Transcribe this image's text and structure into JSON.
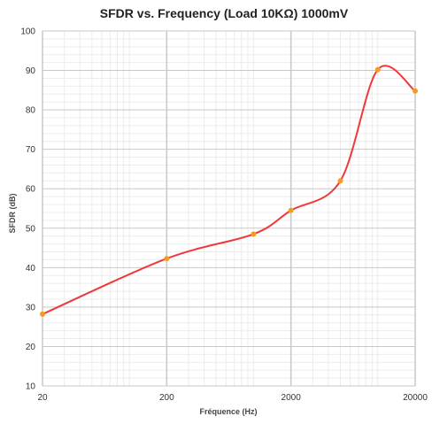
{
  "chart_data": {
    "type": "line",
    "title": "SFDR vs. Frequency (Load 10KΩ) 1000mV",
    "xlabel": "Fréquence (Hz)",
    "ylabel": "SFDR (dB)",
    "x_scale": "log",
    "xlim": [
      20,
      20000
    ],
    "ylim": [
      10,
      100
    ],
    "x_ticks": [
      "20",
      "200",
      "2000",
      "20000"
    ],
    "y_ticks": [
      "10",
      "20",
      "30",
      "40",
      "50",
      "60",
      "70",
      "80",
      "90",
      "100"
    ],
    "grid": true,
    "legend": "none",
    "series": [
      {
        "x": [
          20,
          200,
          1000,
          2000,
          5000,
          10000,
          20000
        ],
        "y": [
          28.2,
          42.3,
          48.5,
          54.5,
          62.0,
          90.2,
          84.8
        ]
      }
    ],
    "colors": {
      "line": "#f0373a",
      "marker": "#f39c1e",
      "grid_major": "#c8c8c8",
      "grid_minor": "#ececec"
    }
  }
}
